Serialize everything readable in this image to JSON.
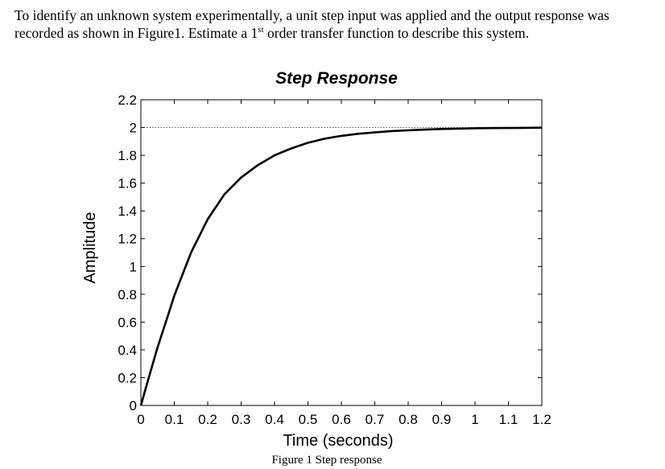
{
  "question": {
    "part1": "To identify an unknown system experimentally, a unit step input was applied and the output response was recorded as shown in Figure1. Estimate a 1",
    "sup": "st",
    "part2": " order transfer function to describe this system."
  },
  "caption": "Figure 1 Step response",
  "chart_data": {
    "type": "line",
    "title": "Step Response",
    "xlabel": "Time (seconds)",
    "ylabel": "Amplitude",
    "xlim": [
      0,
      1.2
    ],
    "ylim": [
      0,
      2.2
    ],
    "xticks": [
      "0",
      "0.1",
      "0.2",
      "0.3",
      "0.4",
      "0.5",
      "0.6",
      "0.7",
      "0.8",
      "0.9",
      "1",
      "1.1",
      "1.2"
    ],
    "yticks": [
      "0",
      "0.2",
      "0.4",
      "0.6",
      "0.8",
      "1",
      "1.2",
      "1.4",
      "1.6",
      "1.8",
      "2",
      "2.2"
    ],
    "reference_line": {
      "y": 2,
      "style": "dotted"
    },
    "series": [
      {
        "x": [
          0,
          0.02,
          0.05,
          0.08,
          0.1,
          0.15,
          0.2,
          0.25,
          0.3,
          0.35,
          0.4,
          0.45,
          0.5,
          0.55,
          0.6,
          0.65,
          0.7,
          0.75,
          0.8,
          0.85,
          0.9,
          0.95,
          1.0,
          1.05,
          1.1,
          1.15,
          1.2
        ],
        "y": [
          0,
          0.17,
          0.42,
          0.64,
          0.79,
          1.1,
          1.34,
          1.52,
          1.64,
          1.73,
          1.8,
          1.85,
          1.89,
          1.92,
          1.94,
          1.955,
          1.965,
          1.975,
          1.98,
          1.985,
          1.99,
          1.992,
          1.995,
          1.996,
          1.997,
          1.998,
          1.999
        ],
        "color": "#000000"
      }
    ],
    "grid": false
  }
}
